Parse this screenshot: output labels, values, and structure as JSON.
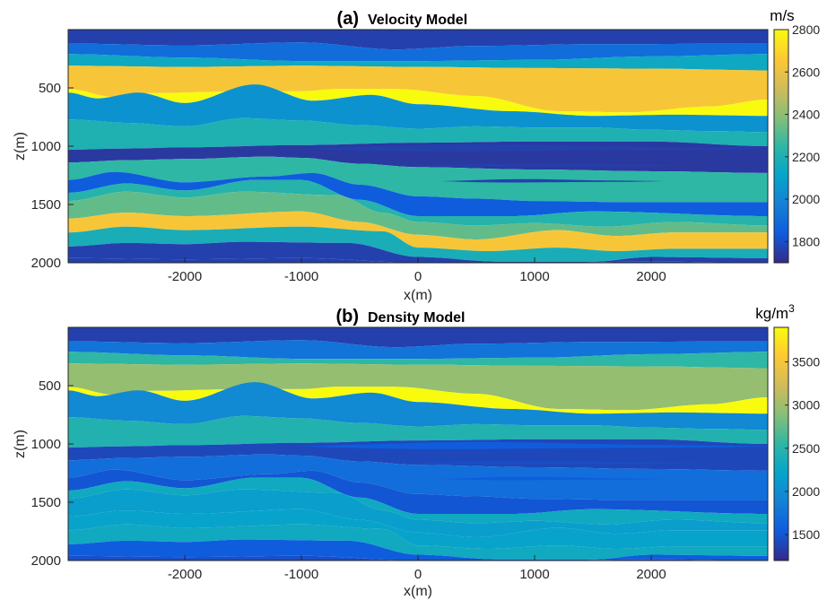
{
  "chart_data": [
    {
      "type": "heatmap",
      "panel_label": "(a)",
      "title": "Velocity Model",
      "xlabel": "x(m)",
      "ylabel": "z(m)",
      "xlim": [
        -3000,
        3000
      ],
      "ylim": [
        0,
        2000
      ],
      "y_reversed": true,
      "x_ticks": [
        -2000,
        -1000,
        0,
        1000,
        2000
      ],
      "y_ticks": [
        500,
        1000,
        1500,
        2000
      ],
      "colorbar": {
        "label": "m/s",
        "range": [
          1700,
          2800
        ],
        "ticks": [
          1800,
          2000,
          2200,
          2400,
          2600,
          2800
        ],
        "colormap": "parula"
      },
      "layer_values": [
        1760,
        1900,
        2140,
        2640,
        2800,
        2040,
        2200,
        1740,
        2250,
        1840,
        2220,
        2330,
        2640,
        2180,
        1760,
        1760
      ]
    },
    {
      "type": "heatmap",
      "panel_label": "(b)",
      "title": "Density Model",
      "xlabel": "x(m)",
      "ylabel": "z(m)",
      "xlim": [
        -3000,
        3000
      ],
      "ylim": [
        0,
        2000
      ],
      "y_reversed": true,
      "x_ticks": [
        -2000,
        -1000,
        0,
        1000,
        2000
      ],
      "y_ticks": [
        500,
        1000,
        1500,
        2000
      ],
      "colorbar": {
        "label": "kg/m",
        "label_superscript": "3",
        "range": [
          1200,
          3900
        ],
        "ticks": [
          1500,
          2000,
          2500,
          3000,
          3500
        ],
        "colormap": "parula"
      },
      "layer_values": [
        1350,
        1750,
        2550,
        2950,
        3900,
        1950,
        2450,
        1400,
        1700,
        1500,
        2300,
        2150,
        2200,
        2300,
        1550,
        1450
      ]
    }
  ]
}
